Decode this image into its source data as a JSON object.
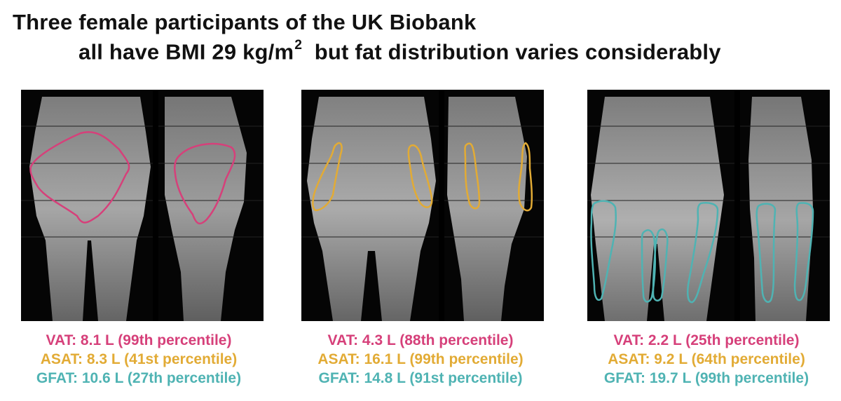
{
  "title": {
    "line1": "Three female participants of the UK Biobank",
    "line2_text": "all have BMI 29 kg/m",
    "line2_sup": "2",
    "line2_rest": "but fat distribution varies considerably"
  },
  "participants": [
    {
      "vat": "VAT: 8.1 L (99th percentile)",
      "asat": "ASAT: 8.3 L (41st percentile)",
      "gfat": "GFAT: 10.6 L (27th percentile)"
    },
    {
      "vat": "VAT: 4.3 L (88th percentile)",
      "asat": "ASAT: 16.1 L (99th percentile)",
      "gfat": "GFAT: 14.8 L (91st percentile)"
    },
    {
      "vat": "VAT: 2.2 L (25th percentile)",
      "asat": "ASAT: 9.2 L (64th percentile)",
      "gfat": "GFAT: 19.7 L (99th percentile)"
    }
  ],
  "colors": {
    "vat": "#d6407a",
    "asat": "#e2ab35",
    "gfat": "#4fb3b3",
    "background": "#050505"
  }
}
